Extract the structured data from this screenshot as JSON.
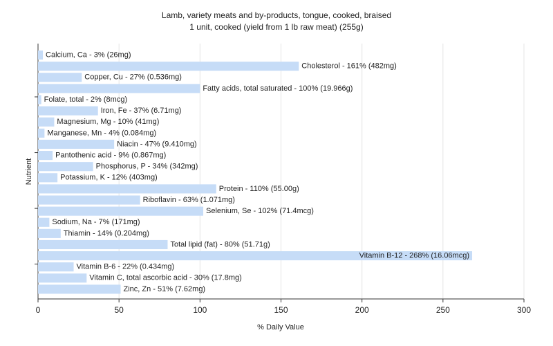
{
  "chart_data": {
    "type": "hbar",
    "title": "Lamb, variety meats and by-products, tongue, cooked, braised",
    "subtitle": "1 unit, cooked (yield from 1 lb raw meat) (255g)",
    "x_label": "% Daily Value",
    "y_label": "Nutrient",
    "values": [
      3,
      161,
      27,
      100,
      2,
      37,
      10,
      4,
      47,
      9,
      34,
      12,
      110,
      63,
      102,
      7,
      14,
      80,
      268,
      22,
      30,
      51
    ],
    "value_labels": [
      "Calcium, Ca - 3% (26mg)",
      "Cholesterol - 161% (482mg)",
      "Copper, Cu - 27% (0.536mg)",
      "Fatty acids, total saturated - 100% (19.966g)",
      "Folate, total - 2% (8mcg)",
      "Iron, Fe - 37% (6.71mg)",
      "Magnesium, Mg - 10% (41mg)",
      "Manganese, Mn - 4% (0.084mg)",
      "Niacin - 47% (9.410mg)",
      "Pantothenic acid - 9% (0.867mg)",
      "Phosphorus, P - 34% (342mg)",
      "Potassium, K - 12% (403mg)",
      "Protein - 110% (55.00g)",
      "Riboflavin - 63% (1.071mg)",
      "Selenium, Se - 102% (71.4mcg)",
      "Sodium, Na - 7% (171mg)",
      "Thiamin - 14% (0.204mg)",
      "Total lipid (fat) - 80% (51.71g)",
      "Vitamin B-12 - 268% (16.06mcg)",
      "Vitamin B-6 - 22% (0.434mg)",
      "Vitamin C, total ascorbic acid - 30% (17.8mg)",
      "Zinc, Zn - 51% (7.62mg)"
    ],
    "color": "#c6dcf7",
    "xlim": [
      0,
      300
    ],
    "xticks": [
      0,
      50,
      100,
      150,
      200,
      250,
      300
    ],
    "grid": true
  }
}
